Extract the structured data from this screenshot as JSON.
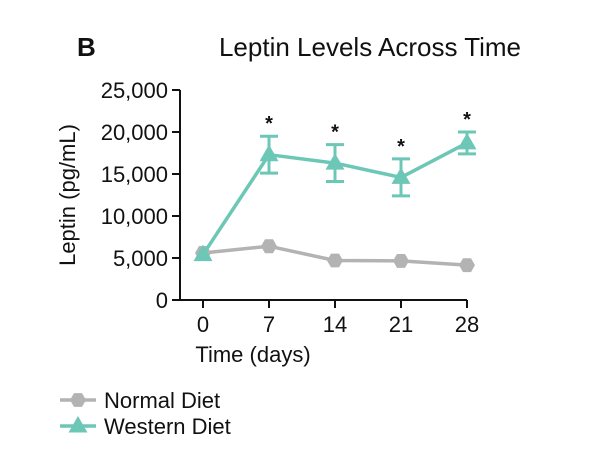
{
  "panel_letter": "B",
  "chart_data": {
    "type": "line",
    "title": "Leptin Levels Across Time",
    "xlabel": "Time (days)",
    "ylabel": "Leptin (pg/mL)",
    "x": [
      0,
      7,
      14,
      21,
      28
    ],
    "x_tick_labels": [
      "0",
      "7",
      "14",
      "21",
      "28"
    ],
    "ylim": [
      0,
      25000
    ],
    "y_ticks": [
      0,
      5000,
      10000,
      15000,
      20000,
      25000
    ],
    "y_tick_labels": [
      "0",
      "5,000",
      "10,000",
      "15,000",
      "20,000",
      "25,000"
    ],
    "grid": false,
    "legend_position": "bottom-left",
    "series": [
      {
        "name": "Normal Diet",
        "marker": "hexagon",
        "color": "#b3b3b3",
        "values": [
          5600,
          6400,
          4700,
          4650,
          4150
        ],
        "error": [
          0,
          0,
          0,
          0,
          0
        ]
      },
      {
        "name": "Western Diet",
        "marker": "triangle",
        "color": "#6cc7b7",
        "values": [
          5400,
          17300,
          16300,
          14600,
          18700
        ],
        "error": [
          0,
          2200,
          2200,
          2200,
          1300
        ]
      }
    ],
    "annotations": [
      {
        "x": 7,
        "text": "*"
      },
      {
        "x": 14,
        "text": "*"
      },
      {
        "x": 21,
        "text": "*"
      },
      {
        "x": 28,
        "text": "*"
      }
    ]
  }
}
